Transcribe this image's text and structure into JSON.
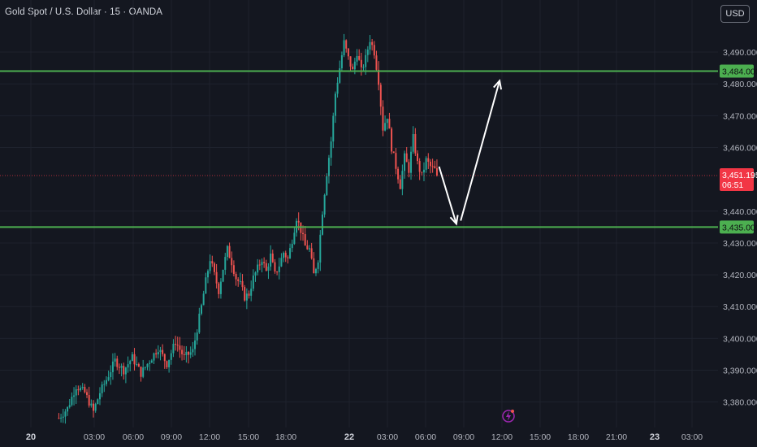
{
  "header": {
    "title": "Gold Spot / U.S. Dollar · 15 · OANDA",
    "currency_button": "USD"
  },
  "colors": {
    "background": "#141720",
    "up": "#26a69a",
    "down": "#ef5350",
    "level_line": "#4caf50",
    "price_badge": "#f23645",
    "grid": "#1e222d",
    "arrow": "#ffffff",
    "alert_icon": "#9c27b0"
  },
  "chart_data": {
    "type": "candlestick",
    "symbol": "Gold Spot / U.S. Dollar",
    "interval": "15",
    "source": "OANDA",
    "ylim": [
      3372,
      3501
    ],
    "grid": true,
    "y_ticks": [
      "3,380.000",
      "3,390.000",
      "3,400.000",
      "3,410.000",
      "3,420.000",
      "3,430.000",
      "3,440.000",
      "3,460.000",
      "3,470.000",
      "3,480.000",
      "3,490.000"
    ],
    "x_ticks": [
      {
        "label": "20",
        "bold": true
      },
      {
        "label": "03:00"
      },
      {
        "label": "06:00"
      },
      {
        "label": "09:00"
      },
      {
        "label": "12:00"
      },
      {
        "label": "15:00"
      },
      {
        "label": "18:00"
      },
      {
        "label": "22",
        "bold": true
      },
      {
        "label": "03:00"
      },
      {
        "label": "06:00"
      },
      {
        "label": "09:00"
      },
      {
        "label": "12:00"
      },
      {
        "label": "15:00"
      },
      {
        "label": "18:00"
      },
      {
        "label": "21:00"
      },
      {
        "label": "23",
        "bold": true
      },
      {
        "label": "03:00"
      }
    ],
    "levels": [
      {
        "label": "3,484.000",
        "value": 3484.0
      },
      {
        "label": "3,435.000",
        "value": 3435.0
      }
    ],
    "current_price": {
      "label": "3,451.195",
      "value": 3451.195,
      "countdown": "06:51"
    },
    "price_path": [
      [
        -16,
        3375
      ],
      [
        -12,
        3378
      ],
      [
        -8,
        3385
      ],
      [
        -4,
        3383
      ],
      [
        0,
        3377
      ],
      [
        3,
        3383
      ],
      [
        6,
        3387
      ],
      [
        10,
        3393
      ],
      [
        14,
        3390
      ],
      [
        18,
        3394
      ],
      [
        22,
        3389
      ],
      [
        26,
        3393
      ],
      [
        30,
        3397
      ],
      [
        34,
        3392
      ],
      [
        38,
        3399
      ],
      [
        42,
        3394
      ],
      [
        46,
        3396
      ],
      [
        48,
        3403
      ],
      [
        50,
        3410
      ],
      [
        52,
        3418
      ],
      [
        54,
        3425
      ],
      [
        56,
        3420
      ],
      [
        58,
        3415
      ],
      [
        60,
        3422
      ],
      [
        62,
        3428
      ],
      [
        64,
        3424
      ],
      [
        66,
        3419
      ],
      [
        68,
        3417
      ],
      [
        70,
        3413
      ],
      [
        72,
        3414
      ],
      [
        74,
        3419
      ],
      [
        76,
        3422
      ],
      [
        78,
        3425
      ],
      [
        80,
        3421
      ],
      [
        82,
        3426
      ],
      [
        84,
        3420
      ],
      [
        86,
        3423
      ],
      [
        88,
        3427
      ],
      [
        90,
        3425
      ],
      [
        92,
        3431
      ],
      [
        94,
        3438
      ],
      [
        96,
        3434
      ],
      [
        98,
        3429
      ],
      [
        100,
        3428
      ],
      [
        102,
        3420
      ],
      [
        104,
        3425
      ],
      [
        106,
        3440
      ],
      [
        108,
        3452
      ],
      [
        110,
        3462
      ],
      [
        112,
        3477
      ],
      [
        114,
        3485
      ],
      [
        116,
        3493
      ],
      [
        118,
        3488
      ],
      [
        120,
        3484
      ],
      [
        122,
        3490
      ],
      [
        124,
        3484
      ],
      [
        126,
        3488
      ],
      [
        128,
        3494
      ],
      [
        130,
        3490
      ],
      [
        132,
        3481
      ],
      [
        134,
        3466
      ],
      [
        136,
        3470
      ],
      [
        138,
        3460
      ],
      [
        140,
        3454
      ],
      [
        142,
        3448
      ],
      [
        144,
        3457
      ],
      [
        146,
        3453
      ],
      [
        148,
        3463
      ],
      [
        150,
        3455
      ],
      [
        152,
        3451
      ],
      [
        154,
        3456
      ],
      [
        156,
        3454
      ],
      [
        158,
        3453
      ],
      [
        159,
        3451.2
      ]
    ],
    "arrows": [
      {
        "from": [
          160,
          3454
        ],
        "to": [
          168,
          3436
        ]
      },
      {
        "from": [
          170,
          3437
        ],
        "to": [
          188,
          3481
        ]
      }
    ]
  }
}
